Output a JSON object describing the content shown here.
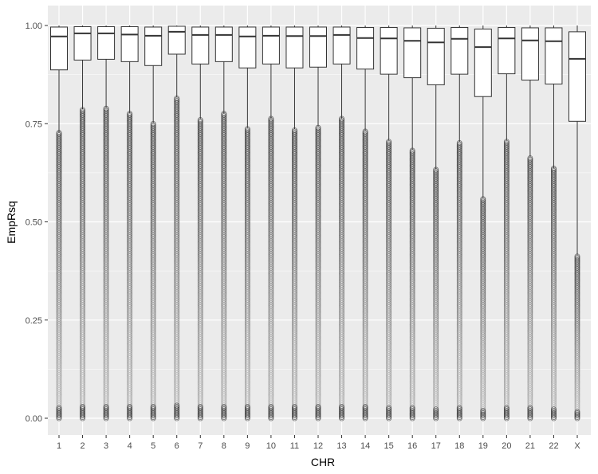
{
  "chart_data": {
    "type": "boxplot",
    "xlabel": "CHR",
    "ylabel": "EmpRsq",
    "ylim": [
      0,
      1
    ],
    "yticks": [
      0.0,
      0.25,
      0.5,
      0.75,
      1.0
    ],
    "ytick_labels": [
      "0.00",
      "0.25",
      "0.50",
      "0.75",
      "1.00"
    ],
    "grid": true,
    "categories": [
      "1",
      "2",
      "3",
      "4",
      "5",
      "6",
      "7",
      "8",
      "9",
      "10",
      "11",
      "12",
      "13",
      "14",
      "15",
      "16",
      "17",
      "18",
      "19",
      "20",
      "21",
      "22",
      "X"
    ],
    "boxes": [
      {
        "q1": 0.887,
        "median": 0.972,
        "q3": 0.996,
        "whisker_low": 0.727,
        "whisker_high": 1.0
      },
      {
        "q1": 0.912,
        "median": 0.98,
        "q3": 0.997,
        "whisker_low": 0.787,
        "whisker_high": 1.0
      },
      {
        "q1": 0.914,
        "median": 0.98,
        "q3": 0.997,
        "whisker_low": 0.79,
        "whisker_high": 1.0
      },
      {
        "q1": 0.908,
        "median": 0.977,
        "q3": 0.997,
        "whisker_low": 0.777,
        "whisker_high": 1.0
      },
      {
        "q1": 0.898,
        "median": 0.974,
        "q3": 0.996,
        "whisker_low": 0.752,
        "whisker_high": 1.0
      },
      {
        "q1": 0.927,
        "median": 0.984,
        "q3": 0.998,
        "whisker_low": 0.817,
        "whisker_high": 1.0
      },
      {
        "q1": 0.902,
        "median": 0.976,
        "q3": 0.996,
        "whisker_low": 0.762,
        "whisker_high": 1.0
      },
      {
        "q1": 0.908,
        "median": 0.976,
        "q3": 0.996,
        "whisker_low": 0.776,
        "whisker_high": 1.0
      },
      {
        "q1": 0.892,
        "median": 0.972,
        "q3": 0.996,
        "whisker_low": 0.739,
        "whisker_high": 1.0
      },
      {
        "q1": 0.902,
        "median": 0.974,
        "q3": 0.996,
        "whisker_low": 0.763,
        "whisker_high": 1.0
      },
      {
        "q1": 0.892,
        "median": 0.973,
        "q3": 0.996,
        "whisker_low": 0.736,
        "whisker_high": 1.0
      },
      {
        "q1": 0.894,
        "median": 0.973,
        "q3": 0.996,
        "whisker_low": 0.743,
        "whisker_high": 1.0
      },
      {
        "q1": 0.902,
        "median": 0.976,
        "q3": 0.996,
        "whisker_low": 0.763,
        "whisker_high": 1.0
      },
      {
        "q1": 0.889,
        "median": 0.968,
        "q3": 0.995,
        "whisker_low": 0.732,
        "whisker_high": 1.0
      },
      {
        "q1": 0.876,
        "median": 0.967,
        "q3": 0.995,
        "whisker_low": 0.707,
        "whisker_high": 1.0
      },
      {
        "q1": 0.867,
        "median": 0.961,
        "q3": 0.994,
        "whisker_low": 0.684,
        "whisker_high": 1.0
      },
      {
        "q1": 0.849,
        "median": 0.957,
        "q3": 0.993,
        "whisker_low": 0.634,
        "whisker_high": 1.0
      },
      {
        "q1": 0.876,
        "median": 0.966,
        "q3": 0.995,
        "whisker_low": 0.704,
        "whisker_high": 1.0
      },
      {
        "q1": 0.819,
        "median": 0.945,
        "q3": 0.991,
        "whisker_low": 0.56,
        "whisker_high": 1.0
      },
      {
        "q1": 0.877,
        "median": 0.967,
        "q3": 0.995,
        "whisker_low": 0.707,
        "whisker_high": 1.0
      },
      {
        "q1": 0.861,
        "median": 0.962,
        "q3": 0.994,
        "whisker_low": 0.665,
        "whisker_high": 1.0
      },
      {
        "q1": 0.851,
        "median": 0.96,
        "q3": 0.994,
        "whisker_low": 0.637,
        "whisker_high": 1.0
      },
      {
        "q1": 0.756,
        "median": 0.915,
        "q3": 0.984,
        "whisker_low": 0.415,
        "whisker_high": 1.0
      }
    ],
    "colors": {
      "panel": "#ebebeb",
      "grid": "#ffffff",
      "box_fill": "#ffffff",
      "box_stroke": "#333333",
      "outlier": "#333333"
    }
  }
}
